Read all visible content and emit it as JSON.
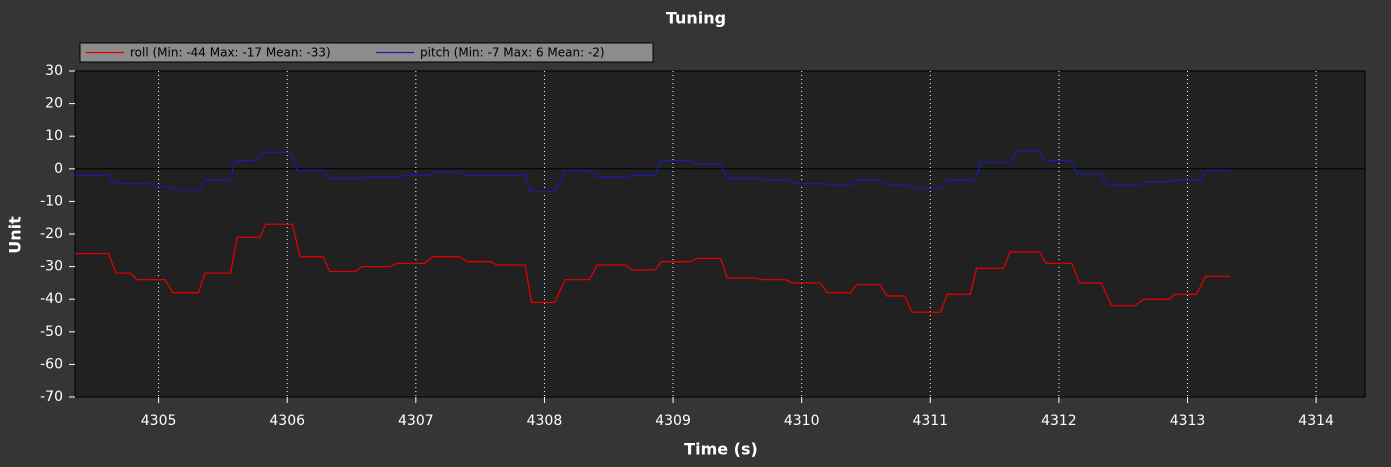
{
  "chart_data": {
    "type": "line",
    "title": "Tuning",
    "x_label": "Time (s)",
    "y_label": "Unit",
    "xlim": [
      4304.35,
      4314.38
    ],
    "xticks": [
      4305,
      4306,
      4307,
      4308,
      4309,
      4310,
      4311,
      4312,
      4313,
      4314
    ],
    "ylim": [
      -70,
      30
    ],
    "yticks": [
      30,
      20,
      10,
      0,
      -10,
      -20,
      -30,
      -40,
      -50,
      -60,
      -70
    ],
    "grid": true,
    "zero_line": true,
    "legend": "top-left",
    "series": [
      {
        "name": "roll (Min: -44 Max: -17 Mean: -33)",
        "color": "#e00000",
        "x": [
          4304.35,
          4304.61,
          4304.67,
          4304.78,
          4304.83,
          4305.05,
          4305.11,
          4305.31,
          4305.36,
          4305.56,
          4305.61,
          4305.79,
          4305.83,
          4306.04,
          4306.1,
          4306.28,
          4306.33,
          4306.53,
          4306.58,
          4306.8,
          4306.85,
          4307.07,
          4307.13,
          4307.34,
          4307.4,
          4307.58,
          4307.63,
          4307.85,
          4307.9,
          4308.08,
          4308.16,
          4308.35,
          4308.41,
          4308.63,
          4308.68,
          4308.86,
          4308.91,
          4309.13,
          4309.19,
          4309.37,
          4309.42,
          4309.64,
          4309.69,
          4309.87,
          4309.93,
          4310.14,
          4310.2,
          4310.38,
          4310.43,
          4310.61,
          4310.66,
          4310.8,
          4310.86,
          4311.08,
          4311.13,
          4311.31,
          4311.36,
          4311.57,
          4311.62,
          4311.85,
          4311.9,
          4312.1,
          4312.16,
          4312.33,
          4312.41,
          4312.59,
          4312.66,
          4312.86,
          4312.9,
          4313.07,
          4313.14,
          4313.33
        ],
        "values": [
          -26,
          -26,
          -32,
          -32,
          -34,
          -34,
          -38,
          -38,
          -32,
          -32,
          -21,
          -21,
          -17,
          -17,
          -27,
          -27,
          -31.5,
          -31.5,
          -30,
          -30,
          -29,
          -29,
          -27,
          -27,
          -28.5,
          -28.5,
          -29.5,
          -29.5,
          -41,
          -41,
          -34,
          -34,
          -29.5,
          -29.5,
          -31,
          -31,
          -28.5,
          -28.5,
          -27.5,
          -27.5,
          -33.5,
          -33.5,
          -34,
          -34,
          -35,
          -35,
          -38,
          -38,
          -35.5,
          -35.5,
          -39,
          -39,
          -44,
          -44,
          -38.5,
          -38.5,
          -30.5,
          -30.5,
          -25.5,
          -25.5,
          -29,
          -29,
          -35,
          -35,
          -42,
          -42,
          -40,
          -40,
          -38.5,
          -38.5,
          -33,
          -33
        ]
      },
      {
        "name": "pitch (Min: -7 Max: 6 Mean: -2)",
        "color": "#1a1aa8",
        "x": [
          4304.35,
          4304.61,
          4304.66,
          4304.93,
          4304.97,
          4305.09,
          4305.13,
          4305.32,
          4305.36,
          4305.56,
          4305.59,
          4305.75,
          4305.8,
          4306.02,
          4306.08,
          4306.29,
          4306.33,
          4306.57,
          4306.6,
          4306.88,
          4306.92,
          4307.11,
          4307.15,
          4307.34,
          4307.38,
          4307.85,
          4307.89,
          4308.08,
          4308.16,
          4308.35,
          4308.41,
          4308.63,
          4308.68,
          4308.86,
          4308.9,
          4309.13,
          4309.19,
          4309.37,
          4309.42,
          4309.68,
          4309.72,
          4309.91,
          4309.95,
          4310.14,
          4310.22,
          4310.38,
          4310.42,
          4310.61,
          4310.66,
          4310.84,
          4310.88,
          4311.08,
          4311.13,
          4311.35,
          4311.39,
          4311.62,
          4311.67,
          4311.85,
          4311.89,
          4312.09,
          4312.14,
          4312.32,
          4312.38,
          4312.63,
          4312.67,
          4312.86,
          4312.9,
          4313.1,
          4313.15,
          4313.33
        ],
        "values": [
          -2,
          -2,
          -4.5,
          -4.5,
          -5.5,
          -5.5,
          -6.5,
          -6.5,
          -3.5,
          -3.5,
          2.5,
          2.5,
          5,
          5,
          -0.5,
          -0.5,
          -3,
          -3,
          -2.5,
          -2.5,
          -2,
          -2,
          -1,
          -1,
          -2,
          -2,
          -7,
          -7,
          -0.5,
          -0.5,
          -2.5,
          -2.5,
          -2,
          -2,
          2.5,
          2.5,
          1.5,
          1.5,
          -3,
          -3,
          -3.5,
          -3.5,
          -4.5,
          -4.5,
          -5,
          -5,
          -3.5,
          -3.5,
          -5,
          -5,
          -6,
          -6,
          -3.5,
          -3.5,
          2,
          2,
          5.5,
          5.5,
          2.5,
          2.5,
          -1.5,
          -1.5,
          -5,
          -5,
          -4,
          -4,
          -3.5,
          -3.5,
          -0.5,
          -0.5
        ]
      }
    ]
  }
}
